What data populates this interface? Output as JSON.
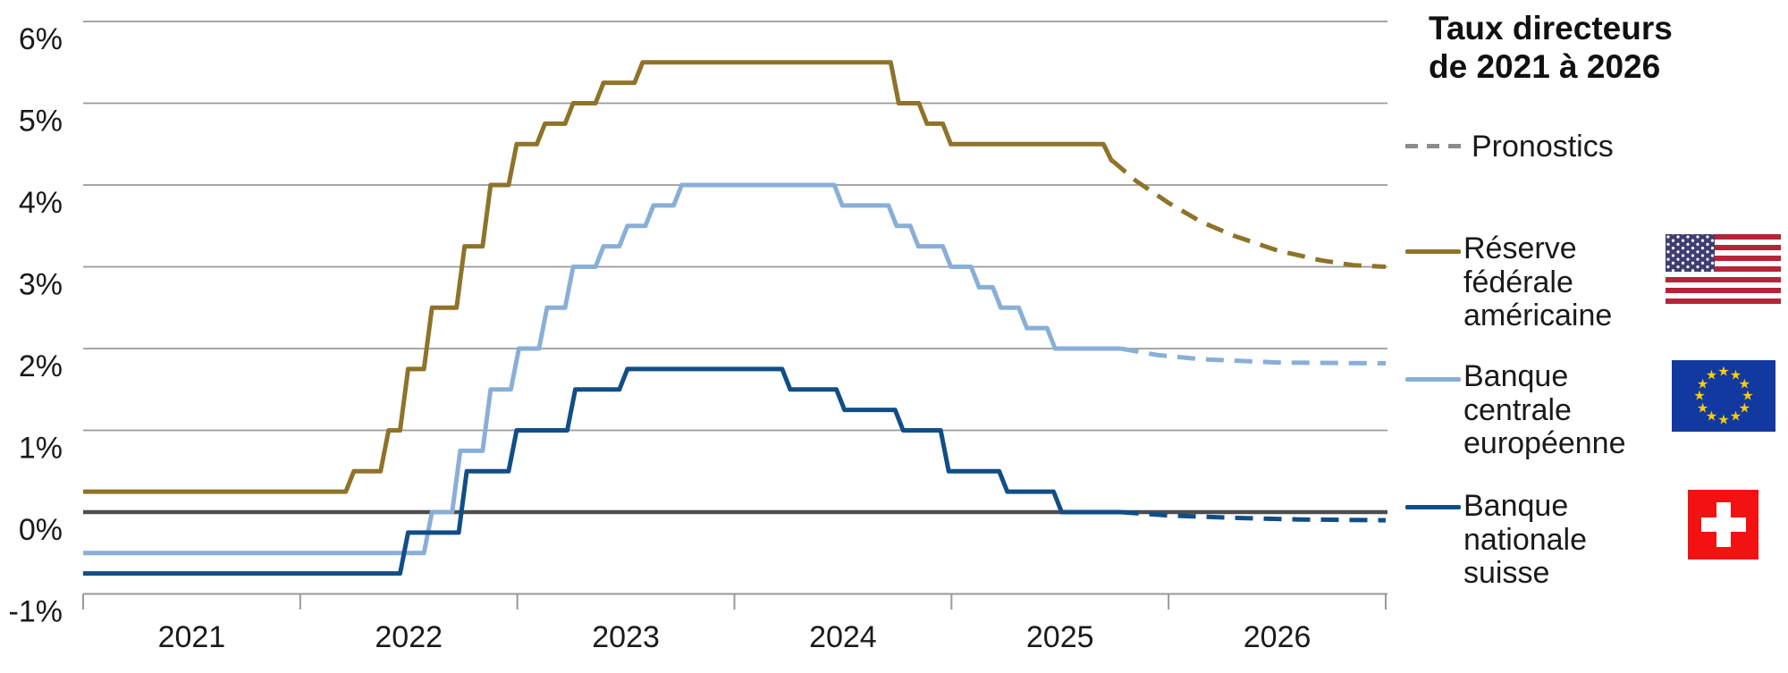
{
  "header": {
    "title_line1": "Taux directeurs",
    "title_line2": "de 2021 à 2026"
  },
  "legend": {
    "forecast_label": "Pronostics",
    "forecast_color": "#8c8c8c",
    "entries": [
      {
        "label_lines": [
          "Réserve",
          "fédérale",
          "américaine"
        ],
        "color": "#8e7329",
        "flag": "us-flag-icon"
      },
      {
        "label_lines": [
          "Banque",
          "centrale",
          "européenne"
        ],
        "color": "#89afd7",
        "flag": "eu-flag-icon"
      },
      {
        "label_lines": [
          "Banque",
          "nationale",
          "suisse"
        ],
        "color": "#114e87",
        "flag": "ch-flag-icon"
      }
    ]
  },
  "icons": {
    "eu_flag_star_glyph": "★",
    "eu_flag_star_count": 12
  },
  "chart_data": {
    "type": "line",
    "subtype": "step",
    "title": "Taux directeurs de 2021 à 2026",
    "xlabel": "",
    "ylabel": "",
    "unit": "%",
    "grid": true,
    "legend_position": "right",
    "x_range": [
      2021,
      2027
    ],
    "y_range": [
      -1,
      6
    ],
    "y_ticks": [
      "6%",
      "5%",
      "4%",
      "3%",
      "2%",
      "1%",
      "0%",
      "-1%"
    ],
    "y_tick_values": [
      6,
      5,
      4,
      3,
      2,
      1,
      0,
      -1
    ],
    "x_tick_labels": [
      "2021",
      "2022",
      "2023",
      "2024",
      "2025",
      "2026"
    ],
    "forecast_dash_color": "#8c8c8c",
    "series": [
      {
        "name": "Réserve fédérale américaine",
        "color": "#8e7329",
        "steps": [
          [
            2021.0,
            0.25
          ],
          [
            2022.21,
            0.5
          ],
          [
            2022.37,
            1.0
          ],
          [
            2022.46,
            1.75
          ],
          [
            2022.57,
            2.5
          ],
          [
            2022.72,
            3.25
          ],
          [
            2022.84,
            4.0
          ],
          [
            2022.96,
            4.5
          ],
          [
            2023.09,
            4.75
          ],
          [
            2023.22,
            5.0
          ],
          [
            2023.36,
            5.25
          ],
          [
            2023.54,
            5.5
          ],
          [
            2024.72,
            5.0
          ],
          [
            2024.85,
            4.75
          ],
          [
            2024.96,
            4.5
          ],
          [
            2025.7,
            4.3
          ]
        ],
        "solid_end": 2025.74,
        "forecast": [
          [
            2025.74,
            4.3
          ],
          [
            2025.85,
            4.05
          ],
          [
            2026.0,
            3.78
          ],
          [
            2026.15,
            3.55
          ],
          [
            2026.3,
            3.38
          ],
          [
            2026.5,
            3.2
          ],
          [
            2026.7,
            3.08
          ],
          [
            2026.85,
            3.02
          ],
          [
            2027.0,
            3.0
          ]
        ]
      },
      {
        "name": "Banque centrale européenne",
        "color": "#89afd7",
        "steps": [
          [
            2021.0,
            -0.5
          ],
          [
            2022.57,
            0.0
          ],
          [
            2022.7,
            0.75
          ],
          [
            2022.84,
            1.5
          ],
          [
            2022.97,
            2.0
          ],
          [
            2023.1,
            2.5
          ],
          [
            2023.22,
            3.0
          ],
          [
            2023.36,
            3.25
          ],
          [
            2023.47,
            3.5
          ],
          [
            2023.59,
            3.75
          ],
          [
            2023.72,
            4.0
          ],
          [
            2024.46,
            3.75
          ],
          [
            2024.71,
            3.5
          ],
          [
            2024.81,
            3.25
          ],
          [
            2024.96,
            3.0
          ],
          [
            2025.09,
            2.75
          ],
          [
            2025.19,
            2.5
          ],
          [
            2025.31,
            2.25
          ],
          [
            2025.44,
            2.0
          ]
        ],
        "solid_end": 2025.78,
        "forecast": [
          [
            2025.78,
            2.0
          ],
          [
            2025.95,
            1.92
          ],
          [
            2026.15,
            1.87
          ],
          [
            2026.5,
            1.83
          ],
          [
            2027.0,
            1.82
          ]
        ]
      },
      {
        "name": "Banque nationale suisse",
        "color": "#114e87",
        "steps": [
          [
            2021.0,
            -0.75
          ],
          [
            2022.46,
            -0.25
          ],
          [
            2022.73,
            0.5
          ],
          [
            2022.96,
            1.0
          ],
          [
            2023.23,
            1.5
          ],
          [
            2023.47,
            1.75
          ],
          [
            2024.22,
            1.5
          ],
          [
            2024.47,
            1.25
          ],
          [
            2024.74,
            1.0
          ],
          [
            2024.95,
            0.5
          ],
          [
            2025.22,
            0.25
          ],
          [
            2025.47,
            0.0
          ]
        ],
        "solid_end": 2025.78,
        "forecast": [
          [
            2025.78,
            0.0
          ],
          [
            2026.0,
            -0.04
          ],
          [
            2026.3,
            -0.07
          ],
          [
            2026.6,
            -0.09
          ],
          [
            2027.0,
            -0.1
          ]
        ]
      }
    ]
  }
}
